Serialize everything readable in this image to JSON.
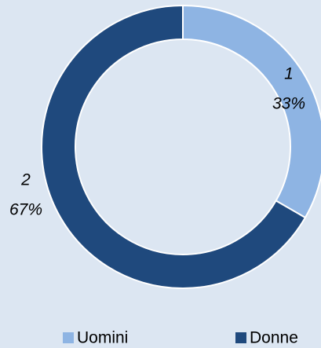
{
  "chart_data": {
    "type": "donut",
    "categories": [
      "Uomini",
      "Donne"
    ],
    "values": [
      1,
      2
    ],
    "percent_labels": [
      "33%",
      "67%"
    ],
    "colors": [
      "#8eb4e3",
      "#1f497d"
    ],
    "legend": "bottom"
  }
}
